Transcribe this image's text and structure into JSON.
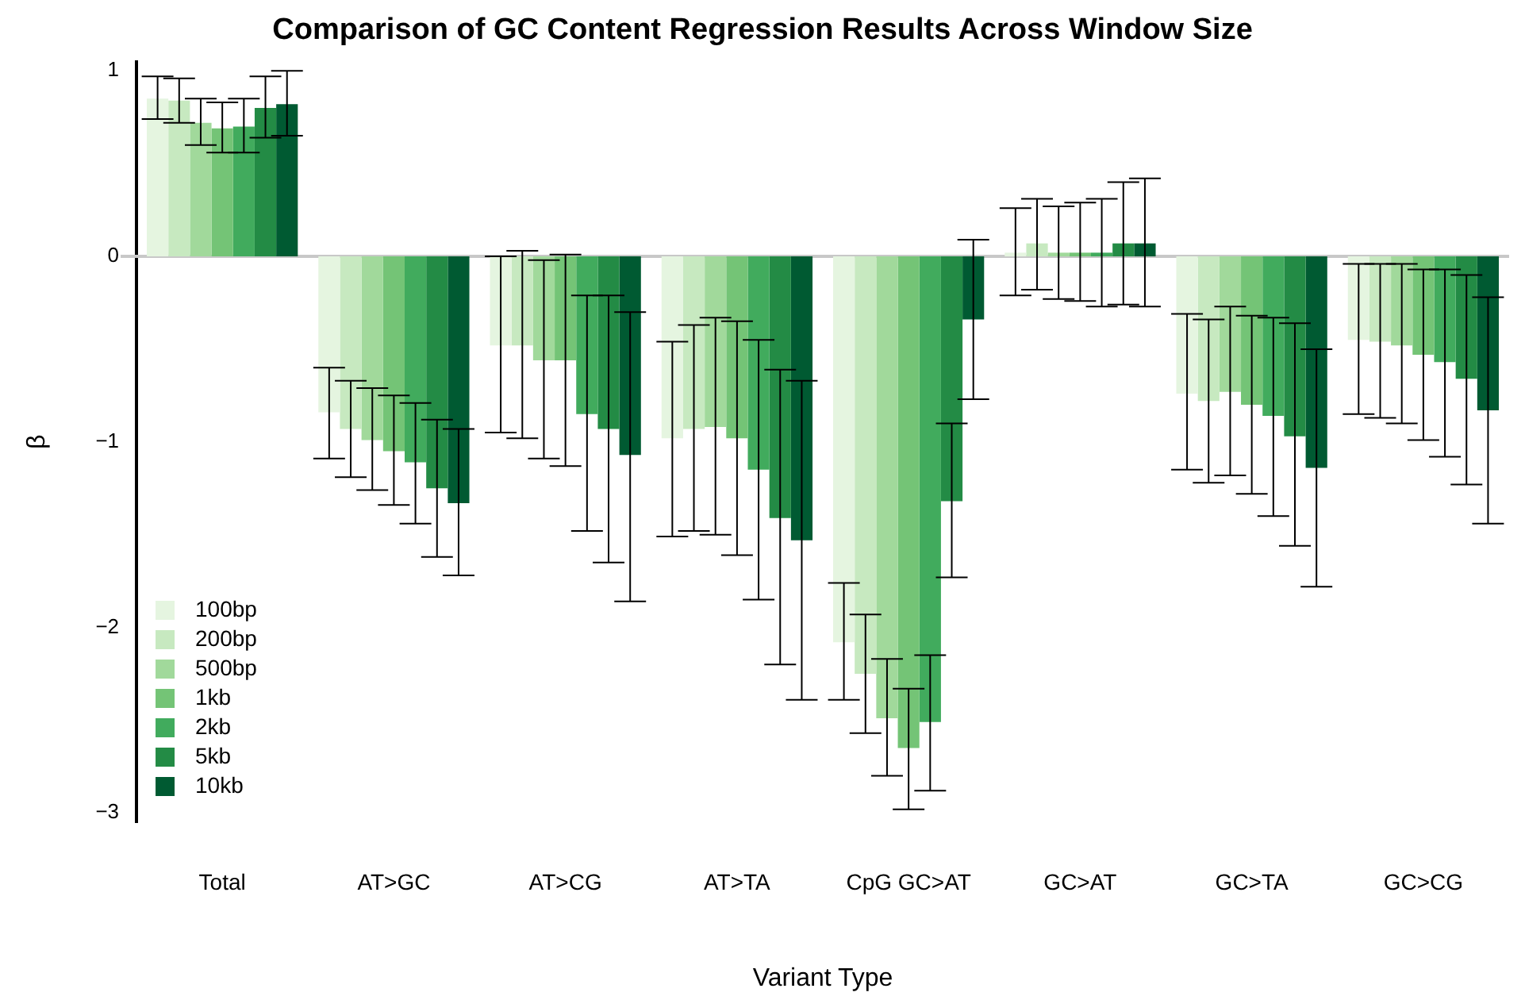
{
  "chart_data": {
    "type": "bar",
    "title": "Comparison of GC Content Regression Results Across Window Size",
    "xlabel": "Variant Type",
    "ylabel": "β",
    "categories": [
      "Total",
      "AT>GC",
      "AT>CG",
      "AT>TA",
      "CpG GC>AT",
      "GC>AT",
      "GC>TA",
      "GC>CG"
    ],
    "ylim": [
      -3.05,
      1.05
    ],
    "yticks": [
      1,
      0,
      {
        "value": -1,
        "label": "−1"
      },
      {
        "value": -2,
        "label": "−2"
      },
      {
        "value": -3,
        "label": "−3"
      }
    ],
    "grid": false,
    "legend": "bottom left",
    "tick_labels": "y",
    "ref_lines": [
      {
        "axis": "y",
        "value": 0,
        "color": "#c8c8c8"
      }
    ],
    "series": [
      {
        "name": "100bp",
        "color": "#e5f5e0",
        "values": [
          0.85,
          -0.84,
          -0.48,
          -0.98,
          -2.08,
          0.02,
          -0.74,
          -0.45
        ],
        "errors": [
          [
            0.74,
            0.97
          ],
          [
            -1.09,
            -0.6
          ],
          [
            -0.95,
            0.0
          ],
          [
            -1.51,
            -0.46
          ],
          [
            -2.39,
            -1.76
          ],
          [
            -0.21,
            0.26
          ],
          [
            -1.15,
            -0.31
          ],
          [
            -0.85,
            -0.04
          ]
        ]
      },
      {
        "name": "200bp",
        "color": "#c7e9c0",
        "values": [
          0.84,
          -0.93,
          -0.48,
          -0.93,
          -2.25,
          0.07,
          -0.78,
          -0.46
        ],
        "errors": [
          [
            0.72,
            0.96
          ],
          [
            -1.19,
            -0.67
          ],
          [
            -0.98,
            0.03
          ],
          [
            -1.48,
            -0.37
          ],
          [
            -2.57,
            -1.93
          ],
          [
            -0.18,
            0.31
          ],
          [
            -1.22,
            -0.34
          ],
          [
            -0.87,
            -0.04
          ]
        ]
      },
      {
        "name": "500bp",
        "color": "#a1d99b",
        "values": [
          0.72,
          -0.99,
          -0.56,
          -0.92,
          -2.49,
          0.02,
          -0.73,
          -0.48
        ],
        "errors": [
          [
            0.6,
            0.85
          ],
          [
            -1.26,
            -0.71
          ],
          [
            -1.09,
            -0.02
          ],
          [
            -1.5,
            -0.33
          ],
          [
            -2.8,
            -2.17
          ],
          [
            -0.23,
            0.27
          ],
          [
            -1.18,
            -0.27
          ],
          [
            -0.9,
            -0.04
          ]
        ]
      },
      {
        "name": "1kb",
        "color": "#74c476",
        "values": [
          0.69,
          -1.05,
          -0.56,
          -0.98,
          -2.65,
          0.02,
          -0.8,
          -0.53
        ],
        "errors": [
          [
            0.56,
            0.83
          ],
          [
            -1.34,
            -0.75
          ],
          [
            -1.13,
            0.01
          ],
          [
            -1.61,
            -0.35
          ],
          [
            -2.98,
            -2.33
          ],
          [
            -0.24,
            0.29
          ],
          [
            -1.28,
            -0.32
          ],
          [
            -0.99,
            -0.07
          ]
        ]
      },
      {
        "name": "2kb",
        "color": "#41ab5d",
        "values": [
          0.7,
          -1.11,
          -0.85,
          -1.15,
          -2.51,
          0.02,
          -0.86,
          -0.57
        ],
        "errors": [
          [
            0.56,
            0.85
          ],
          [
            -1.44,
            -0.79
          ],
          [
            -1.48,
            -0.21
          ],
          [
            -1.85,
            -0.45
          ],
          [
            -2.88,
            -2.15
          ],
          [
            -0.27,
            0.31
          ],
          [
            -1.4,
            -0.33
          ],
          [
            -1.08,
            -0.07
          ]
        ]
      },
      {
        "name": "5kb",
        "color": "#238b45",
        "values": [
          0.8,
          -1.25,
          -0.93,
          -1.41,
          -1.32,
          0.07,
          -0.97,
          -0.66
        ],
        "errors": [
          [
            0.64,
            0.97
          ],
          [
            -1.62,
            -0.88
          ],
          [
            -1.65,
            -0.21
          ],
          [
            -2.2,
            -0.61
          ],
          [
            -1.73,
            -0.9
          ],
          [
            -0.26,
            0.4
          ],
          [
            -1.56,
            -0.36
          ],
          [
            -1.23,
            -0.1
          ]
        ]
      },
      {
        "name": "10kb",
        "color": "#005a32",
        "values": [
          0.82,
          -1.33,
          -1.07,
          -1.53,
          -0.34,
          0.07,
          -1.14,
          -0.83
        ],
        "errors": [
          [
            0.65,
            1.0
          ],
          [
            -1.72,
            -0.93
          ],
          [
            -1.86,
            -0.3
          ],
          [
            -2.39,
            -0.67
          ],
          [
            -0.77,
            0.09
          ],
          [
            -0.27,
            0.42
          ],
          [
            -1.78,
            -0.5
          ],
          [
            -1.44,
            -0.22
          ]
        ]
      }
    ]
  }
}
